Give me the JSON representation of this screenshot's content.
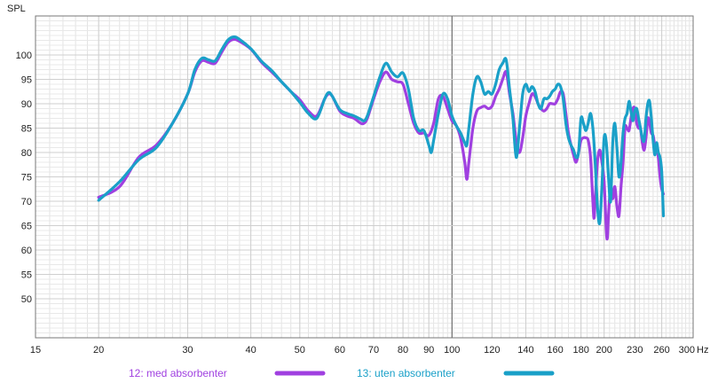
{
  "chart_data": {
    "type": "line",
    "title": "",
    "xlabel": "Hz",
    "ylabel": "SPL",
    "x_scale": "log",
    "xlim": [
      15,
      300
    ],
    "ylim": [
      42,
      108
    ],
    "grid": true,
    "legend_position": "bottom-center",
    "x_ticks": [
      {
        "value": 15,
        "label": "15"
      },
      {
        "value": 20,
        "label": "20"
      },
      {
        "value": 30,
        "label": "30"
      },
      {
        "value": 40,
        "label": "40"
      },
      {
        "value": 50,
        "label": "50"
      },
      {
        "value": 60,
        "label": "60"
      },
      {
        "value": 70,
        "label": "70"
      },
      {
        "value": 80,
        "label": "80"
      },
      {
        "value": 90,
        "label": "90"
      },
      {
        "value": 100,
        "label": "100"
      },
      {
        "value": 120,
        "label": "120"
      },
      {
        "value": 140,
        "label": "140"
      },
      {
        "value": 160,
        "label": "160"
      },
      {
        "value": 180,
        "label": "180"
      },
      {
        "value": 200,
        "label": "200"
      },
      {
        "value": 230,
        "label": "230"
      },
      {
        "value": 260,
        "label": "260"
      },
      {
        "value": 300,
        "label": "300"
      }
    ],
    "y_ticks": [
      50,
      55,
      60,
      65,
      70,
      75,
      80,
      85,
      90,
      95,
      100
    ],
    "series": [
      {
        "name": "12: med absorbenter",
        "color": "#a040e0",
        "points": [
          [
            20,
            70.8
          ],
          [
            22,
            73
          ],
          [
            24,
            79
          ],
          [
            26,
            81.5
          ],
          [
            28,
            86
          ],
          [
            30,
            92
          ],
          [
            31,
            96.5
          ],
          [
            32,
            98.8
          ],
          [
            33,
            98.5
          ],
          [
            34,
            98.3
          ],
          [
            35,
            100.5
          ],
          [
            36,
            102.5
          ],
          [
            37,
            103.2
          ],
          [
            38,
            102.8
          ],
          [
            40,
            101.2
          ],
          [
            42,
            98.5
          ],
          [
            44,
            96.5
          ],
          [
            46,
            94.5
          ],
          [
            48,
            92.5
          ],
          [
            50,
            90.8
          ],
          [
            52,
            88.5
          ],
          [
            54,
            87.5
          ],
          [
            56,
            91
          ],
          [
            57,
            92
          ],
          [
            58,
            91.5
          ],
          [
            60,
            88.5
          ],
          [
            62,
            87.5
          ],
          [
            64,
            87
          ],
          [
            66,
            86
          ],
          [
            67,
            86
          ],
          [
            68,
            87
          ],
          [
            70,
            91
          ],
          [
            72,
            94.5
          ],
          [
            74,
            96.5
          ],
          [
            76,
            95
          ],
          [
            78,
            94.5
          ],
          [
            80,
            94
          ],
          [
            82,
            90
          ],
          [
            84,
            86
          ],
          [
            86,
            84
          ],
          [
            88,
            84
          ],
          [
            90,
            83.5
          ],
          [
            92,
            86
          ],
          [
            94,
            91
          ],
          [
            96,
            91.5
          ],
          [
            98,
            89
          ],
          [
            100,
            86.5
          ],
          [
            102,
            85.5
          ],
          [
            104,
            83
          ],
          [
            106,
            78
          ],
          [
            107,
            74.5
          ],
          [
            108,
            78
          ],
          [
            110,
            85
          ],
          [
            112,
            88.5
          ],
          [
            114,
            89.2
          ],
          [
            116,
            89.5
          ],
          [
            118,
            89
          ],
          [
            120,
            89.5
          ],
          [
            122,
            91.5
          ],
          [
            124,
            93
          ],
          [
            126,
            95
          ],
          [
            128,
            96.5
          ],
          [
            130,
            92
          ],
          [
            132,
            88
          ],
          [
            134,
            82.5
          ],
          [
            136,
            80
          ],
          [
            138,
            83
          ],
          [
            140,
            87.5
          ],
          [
            142,
            90
          ],
          [
            144,
            92
          ],
          [
            146,
            91.5
          ],
          [
            148,
            90
          ],
          [
            150,
            89
          ],
          [
            152,
            88.5
          ],
          [
            154,
            89
          ],
          [
            156,
            90
          ],
          [
            158,
            90
          ],
          [
            160,
            90
          ],
          [
            162,
            91
          ],
          [
            164,
            92.5
          ],
          [
            166,
            92
          ],
          [
            168,
            88
          ],
          [
            170,
            84
          ],
          [
            172,
            81.5
          ],
          [
            174,
            79.5
          ],
          [
            176,
            78
          ],
          [
            178,
            80
          ],
          [
            180,
            82.5
          ],
          [
            182,
            83
          ],
          [
            184,
            83
          ],
          [
            186,
            82.5
          ],
          [
            188,
            79
          ],
          [
            190,
            70
          ],
          [
            191,
            66.5
          ],
          [
            192,
            70
          ],
          [
            194,
            78
          ],
          [
            196,
            80.5
          ],
          [
            198,
            78
          ],
          [
            200,
            74
          ],
          [
            202,
            64
          ],
          [
            203,
            62.5
          ],
          [
            204,
            67
          ],
          [
            206,
            73
          ],
          [
            208,
            70.5
          ],
          [
            210,
            73
          ],
          [
            212,
            69
          ],
          [
            214,
            67
          ],
          [
            216,
            73
          ],
          [
            218,
            78
          ],
          [
            220,
            85
          ],
          [
            222,
            85
          ],
          [
            224,
            84.5
          ],
          [
            226,
            87
          ],
          [
            228,
            89
          ],
          [
            230,
            89
          ],
          [
            232,
            86
          ],
          [
            234,
            85
          ],
          [
            236,
            85
          ],
          [
            238,
            82
          ],
          [
            240,
            80.5
          ],
          [
            242,
            83
          ],
          [
            244,
            87
          ],
          [
            246,
            86
          ],
          [
            248,
            84
          ],
          [
            250,
            83.5
          ],
          [
            252,
            81.5
          ],
          [
            254,
            81
          ],
          [
            256,
            79
          ],
          [
            258,
            75
          ],
          [
            260,
            72.5
          ],
          [
            262,
            71.5
          ]
        ]
      },
      {
        "name": "13: uten absorbenter",
        "color": "#1aa0c8",
        "points": [
          [
            20,
            70.2
          ],
          [
            22,
            74
          ],
          [
            24,
            78.5
          ],
          [
            26,
            81
          ],
          [
            28,
            86
          ],
          [
            30,
            92
          ],
          [
            31,
            97
          ],
          [
            32,
            99.3
          ],
          [
            33,
            99
          ],
          [
            34,
            98.8
          ],
          [
            35,
            101
          ],
          [
            36,
            103
          ],
          [
            37,
            103.7
          ],
          [
            38,
            103.2
          ],
          [
            40,
            101.3
          ],
          [
            42,
            98.7
          ],
          [
            44,
            96.8
          ],
          [
            46,
            94.5
          ],
          [
            48,
            92.5
          ],
          [
            50,
            90.3
          ],
          [
            52,
            88
          ],
          [
            54,
            87
          ],
          [
            56,
            91
          ],
          [
            57,
            92.3
          ],
          [
            58,
            91.5
          ],
          [
            60,
            88.8
          ],
          [
            62,
            88
          ],
          [
            64,
            87.5
          ],
          [
            66,
            86.8
          ],
          [
            67,
            86.5
          ],
          [
            68,
            87.5
          ],
          [
            70,
            91.5
          ],
          [
            72,
            95.5
          ],
          [
            74,
            98.3
          ],
          [
            76,
            96.5
          ],
          [
            78,
            95.5
          ],
          [
            80,
            96.3
          ],
          [
            82,
            93
          ],
          [
            84,
            87
          ],
          [
            86,
            84.5
          ],
          [
            88,
            84.5
          ],
          [
            90,
            81.5
          ],
          [
            91,
            80
          ],
          [
            92,
            82.5
          ],
          [
            94,
            88
          ],
          [
            96,
            92
          ],
          [
            98,
            91
          ],
          [
            100,
            87.5
          ],
          [
            102,
            85.5
          ],
          [
            104,
            84
          ],
          [
            106,
            82
          ],
          [
            107,
            81.5
          ],
          [
            108,
            85
          ],
          [
            110,
            92
          ],
          [
            112,
            95.5
          ],
          [
            114,
            94.5
          ],
          [
            116,
            92
          ],
          [
            118,
            92.5
          ],
          [
            120,
            92
          ],
          [
            122,
            94
          ],
          [
            124,
            97
          ],
          [
            126,
            98.3
          ],
          [
            128,
            99
          ],
          [
            130,
            93
          ],
          [
            132,
            87
          ],
          [
            134,
            79
          ],
          [
            136,
            85
          ],
          [
            138,
            92
          ],
          [
            140,
            94
          ],
          [
            142,
            92.5
          ],
          [
            144,
            93.5
          ],
          [
            146,
            92.5
          ],
          [
            148,
            90
          ],
          [
            150,
            89
          ],
          [
            152,
            91
          ],
          [
            154,
            91
          ],
          [
            156,
            91.5
          ],
          [
            158,
            92.5
          ],
          [
            160,
            93
          ],
          [
            162,
            94
          ],
          [
            164,
            93.5
          ],
          [
            166,
            91
          ],
          [
            168,
            86
          ],
          [
            170,
            83
          ],
          [
            172,
            81.5
          ],
          [
            174,
            80.5
          ],
          [
            176,
            79
          ],
          [
            178,
            80
          ],
          [
            180,
            87
          ],
          [
            182,
            86
          ],
          [
            184,
            84.5
          ],
          [
            186,
            86
          ],
          [
            188,
            88
          ],
          [
            190,
            85
          ],
          [
            192,
            78
          ],
          [
            194,
            69
          ],
          [
            196,
            65.5
          ],
          [
            198,
            73
          ],
          [
            200,
            83
          ],
          [
            202,
            82
          ],
          [
            204,
            75
          ],
          [
            206,
            70
          ],
          [
            208,
            82
          ],
          [
            210,
            86
          ],
          [
            212,
            81
          ],
          [
            214,
            75
          ],
          [
            216,
            78
          ],
          [
            218,
            84
          ],
          [
            220,
            87
          ],
          [
            222,
            88
          ],
          [
            224,
            90.5
          ],
          [
            226,
            88.5
          ],
          [
            228,
            86.5
          ],
          [
            230,
            88.5
          ],
          [
            232,
            89
          ],
          [
            234,
            87
          ],
          [
            236,
            85
          ],
          [
            238,
            83
          ],
          [
            240,
            82.5
          ],
          [
            242,
            87
          ],
          [
            244,
            90
          ],
          [
            246,
            90.5
          ],
          [
            248,
            87
          ],
          [
            250,
            82.5
          ],
          [
            252,
            79.5
          ],
          [
            254,
            82
          ],
          [
            256,
            80
          ],
          [
            258,
            79
          ],
          [
            260,
            76
          ],
          [
            262,
            67
          ]
        ]
      }
    ]
  }
}
